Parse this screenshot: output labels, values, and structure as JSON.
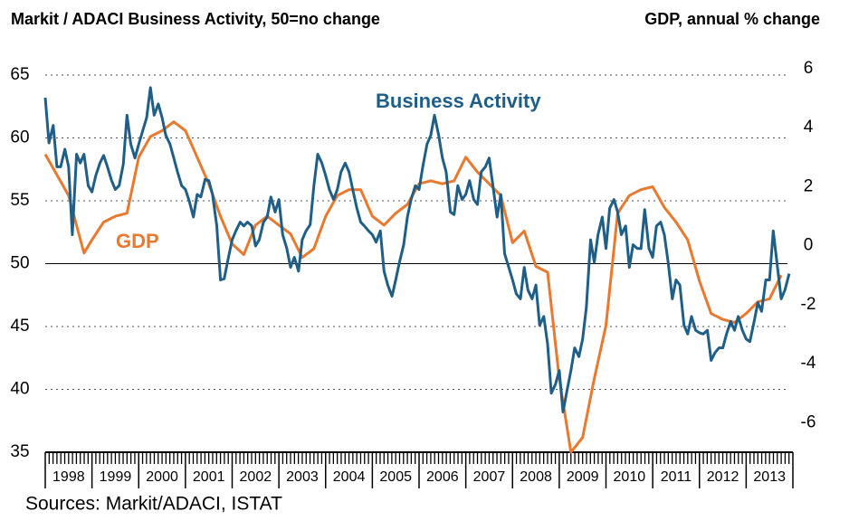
{
  "chart_data": {
    "type": "line",
    "title": "Markit / ADACI  Business Activity, 50=no change",
    "y2_label": "GDP, annual % change",
    "source": "Sources: Markit/ADACI, ISTAT",
    "annotations": [
      "Business Activity",
      "GDP"
    ],
    "xlim": [
      1998,
      2014
    ],
    "xticks": [
      {
        "value": 1998.5,
        "label": "1998"
      },
      {
        "value": 1999.5,
        "label": "1999"
      },
      {
        "value": 2000.5,
        "label": "2000"
      },
      {
        "value": 2001.5,
        "label": "2001"
      },
      {
        "value": 2002.5,
        "label": "2002"
      },
      {
        "value": 2003.5,
        "label": "2003"
      },
      {
        "value": 2004.5,
        "label": "2004"
      },
      {
        "value": 2005.5,
        "label": "2005"
      },
      {
        "value": 2006.5,
        "label": "2006"
      },
      {
        "value": 2007.5,
        "label": "2007"
      },
      {
        "value": 2008.5,
        "label": "2008"
      },
      {
        "value": 2009.5,
        "label": "2009"
      },
      {
        "value": 2010.5,
        "label": "2010"
      },
      {
        "value": 2011.5,
        "label": "2011"
      },
      {
        "value": 2012.5,
        "label": "2012"
      },
      {
        "value": 2013.5,
        "label": "2013"
      }
    ],
    "ylim": [
      35,
      65.5
    ],
    "yticks": [
      35,
      40,
      45,
      50,
      55,
      60,
      65
    ],
    "y2lim": [
      -7,
      6
    ],
    "y2ticks": [
      -6,
      -4,
      -2,
      0,
      2,
      4,
      6
    ],
    "reference_line": 50,
    "grid": true,
    "series": [
      {
        "name": "Business Activity",
        "color": "#1f5f87",
        "axis": "y",
        "x": [
          1998,
          1998.08,
          1998.17,
          1998.25,
          1998.33,
          1998.42,
          1998.5,
          1998.58,
          1998.67,
          1998.75,
          1998.83,
          1998.92,
          1999,
          1999.08,
          1999.17,
          1999.25,
          1999.33,
          1999.42,
          1999.5,
          1999.58,
          1999.67,
          1999.75,
          1999.83,
          1999.92,
          2000,
          2000.08,
          2000.17,
          2000.25,
          2000.33,
          2000.42,
          2000.5,
          2000.58,
          2000.67,
          2000.75,
          2000.83,
          2000.92,
          2001,
          2001.08,
          2001.17,
          2001.25,
          2001.33,
          2001.42,
          2001.5,
          2001.58,
          2001.67,
          2001.75,
          2001.83,
          2001.92,
          2002,
          2002.08,
          2002.17,
          2002.25,
          2002.33,
          2002.42,
          2002.5,
          2002.58,
          2002.67,
          2002.75,
          2002.83,
          2002.92,
          2003,
          2003.08,
          2003.17,
          2003.25,
          2003.33,
          2003.42,
          2003.5,
          2003.58,
          2003.67,
          2003.75,
          2003.83,
          2003.92,
          2004,
          2004.08,
          2004.17,
          2004.25,
          2004.33,
          2004.42,
          2004.5,
          2004.58,
          2004.67,
          2004.75,
          2004.83,
          2004.92,
          2005,
          2005.08,
          2005.17,
          2005.25,
          2005.33,
          2005.42,
          2005.5,
          2005.58,
          2005.67,
          2005.75,
          2005.83,
          2005.92,
          2006,
          2006.08,
          2006.17,
          2006.25,
          2006.33,
          2006.42,
          2006.5,
          2006.58,
          2006.67,
          2006.75,
          2006.83,
          2006.92,
          2007,
          2007.08,
          2007.17,
          2007.25,
          2007.33,
          2007.42,
          2007.5,
          2007.58,
          2007.67,
          2007.75,
          2007.83,
          2007.92,
          2008,
          2008.08,
          2008.17,
          2008.25,
          2008.33,
          2008.42,
          2008.5,
          2008.58,
          2008.67,
          2008.75,
          2008.83,
          2008.92,
          2009,
          2009.08,
          2009.17,
          2009.25,
          2009.33,
          2009.42,
          2009.5,
          2009.58,
          2009.67,
          2009.75,
          2009.83,
          2009.92,
          2010,
          2010.08,
          2010.17,
          2010.25,
          2010.33,
          2010.42,
          2010.5,
          2010.58,
          2010.67,
          2010.75,
          2010.83,
          2010.92,
          2011,
          2011.08,
          2011.17,
          2011.25,
          2011.33,
          2011.42,
          2011.5,
          2011.58,
          2011.67,
          2011.75,
          2011.83,
          2011.92,
          2012,
          2012.08,
          2012.17,
          2012.25,
          2012.33,
          2012.42,
          2012.5,
          2012.58,
          2012.67,
          2012.75,
          2012.83,
          2012.92,
          2013,
          2013.08,
          2013.17,
          2013.25,
          2013.33,
          2013.42,
          2013.5,
          2013.58,
          2013.67,
          2013.75,
          2013.83,
          2013.92
        ],
        "values": [
          63.2,
          59.6,
          61,
          57.7,
          57.7,
          59.1,
          57.7,
          52.3,
          58.7,
          58,
          58.7,
          56.2,
          55.7,
          57,
          58,
          58.6,
          57.7,
          56.6,
          55.9,
          56.2,
          57.9,
          61.8,
          59.5,
          58.4,
          59.5,
          60.5,
          61.6,
          64,
          61.8,
          62.7,
          61.6,
          60.2,
          59.5,
          58.4,
          57.3,
          56.2,
          55.9,
          55,
          53.7,
          55.5,
          55.3,
          56.7,
          56.6,
          55.5,
          53,
          48.7,
          48.8,
          50.5,
          51.9,
          52.6,
          53.3,
          53,
          53.3,
          53,
          51.4,
          51.9,
          53.3,
          53.7,
          55.3,
          54.1,
          55.1,
          52.3,
          51.2,
          49.7,
          50.5,
          49.4,
          51.9,
          52.6,
          53.1,
          56.2,
          58.7,
          58,
          57,
          55.9,
          55.1,
          55.9,
          57.3,
          58,
          57.3,
          55.9,
          54.4,
          53.3,
          53,
          52.6,
          52.3,
          51.7,
          52.6,
          49.4,
          48.3,
          47.4,
          48.7,
          50.1,
          51.5,
          53.7,
          55.1,
          56.2,
          55.9,
          57.7,
          59.5,
          60.2,
          61.8,
          60.2,
          58.4,
          57.3,
          54.1,
          53.9,
          56.2,
          55.1,
          55.5,
          56.6,
          55.1,
          54.7,
          57.3,
          57.7,
          58.4,
          56.2,
          53.7,
          55.5,
          50.8,
          49.7,
          48.7,
          47.6,
          47.2,
          49.7,
          47.9,
          47.2,
          48.3,
          45.1,
          45.8,
          43.6,
          39.7,
          40.4,
          41.5,
          38.2,
          40,
          41.5,
          43.3,
          42.6,
          44,
          46.5,
          51.9,
          50.1,
          52.3,
          53.7,
          51.2,
          54.4,
          55.1,
          54.1,
          52.3,
          53,
          49.7,
          51.5,
          51.2,
          51.2,
          54.3,
          51.2,
          50.5,
          53,
          53.3,
          52.3,
          50.1,
          47.2,
          48.7,
          48.3,
          45.1,
          44.4,
          45.8,
          44.7,
          44.5,
          44.4,
          44.7,
          42.3,
          42.9,
          43.3,
          43.3,
          44.4,
          45.4,
          44.7,
          45.8,
          44.7,
          44,
          43.8,
          45.4,
          46.9,
          46.2,
          48.7,
          48.7,
          52.6,
          49.7,
          47.2,
          47.9,
          49.2
        ]
      },
      {
        "name": "GDP",
        "color": "#e8792f",
        "axis": "y2",
        "x": [
          1998,
          1998.25,
          1998.5,
          1998.83,
          1999,
          1999.25,
          1999.5,
          1999.75,
          2000,
          2000.25,
          2000.5,
          2000.75,
          2001,
          2001.25,
          2001.5,
          2001.75,
          2002,
          2002.25,
          2002.5,
          2002.75,
          2003,
          2003.25,
          2003.5,
          2003.75,
          2004,
          2004.25,
          2004.5,
          2004.75,
          2005,
          2005.25,
          2005.5,
          2005.75,
          2006,
          2006.25,
          2006.5,
          2006.75,
          2007,
          2007.25,
          2007.5,
          2007.75,
          2008,
          2008.25,
          2008.5,
          2008.75,
          2009,
          2009.25,
          2009.5,
          2009.75,
          2010,
          2010.25,
          2010.5,
          2010.75,
          2011,
          2011.25,
          2011.5,
          2011.75,
          2012,
          2012.25,
          2012.5,
          2012.75,
          2013,
          2013.25,
          2013.5,
          2013.75
        ],
        "values": [
          3.1,
          2.4,
          1.7,
          -0.25,
          0.2,
          0.8,
          1.0,
          1.1,
          3.0,
          3.7,
          3.9,
          4.2,
          3.9,
          3.0,
          2.1,
          1.0,
          0.06,
          -0.3,
          0.7,
          1.0,
          0.7,
          0.4,
          -0.4,
          -0.1,
          1.0,
          1.7,
          1.9,
          1.9,
          1.0,
          0.7,
          1.1,
          1.4,
          2.1,
          2.2,
          2.1,
          2.2,
          3.0,
          2.5,
          2.1,
          1.7,
          0.1,
          0.5,
          -0.7,
          -0.9,
          -4.5,
          -7.0,
          -6.5,
          -4.5,
          -2.7,
          1.1,
          1.7,
          1.9,
          2.0,
          1.3,
          0.8,
          0.2,
          -1.2,
          -2.3,
          -2.5,
          -2.6,
          -2.3,
          -1.9,
          -1.8,
          -1.0
        ]
      }
    ]
  }
}
